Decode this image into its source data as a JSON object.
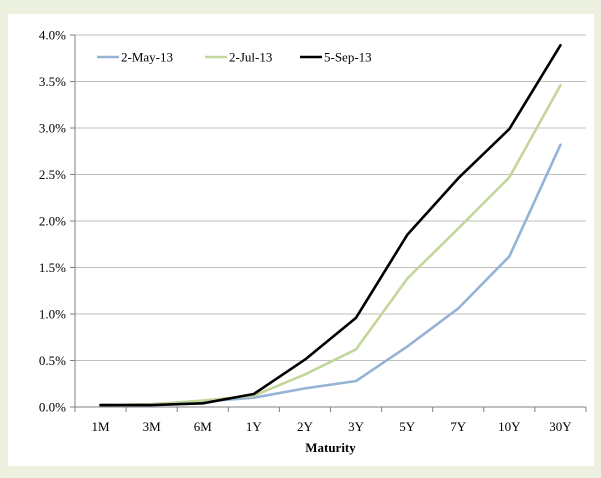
{
  "chart_data": {
    "type": "line",
    "title": "",
    "xlabel": "Maturity",
    "ylabel": "",
    "categories": [
      "1M",
      "3M",
      "6M",
      "1Y",
      "2Y",
      "3Y",
      "5Y",
      "7Y",
      "10Y",
      "30Y"
    ],
    "ylim": [
      0,
      4.0
    ],
    "ytick_labels": [
      "0.0%",
      "0.5%",
      "1.0%",
      "1.5%",
      "2.0%",
      "2.5%",
      "3.0%",
      "3.5%",
      "4.0%"
    ],
    "ytick_values": [
      0,
      0.5,
      1.0,
      1.5,
      2.0,
      2.5,
      3.0,
      3.5,
      4.0
    ],
    "y_unit": "%",
    "grid": "horizontal",
    "legend_position": "top-left",
    "series": [
      {
        "name": "2-May-13",
        "color": "#95b3d7",
        "values": [
          0.02,
          0.03,
          0.06,
          0.1,
          0.2,
          0.28,
          0.65,
          1.06,
          1.62,
          2.82
        ]
      },
      {
        "name": "2-Jul-13",
        "color": "#c3d69b",
        "values": [
          0.02,
          0.03,
          0.07,
          0.12,
          0.35,
          0.62,
          1.38,
          1.92,
          2.47,
          3.46
        ]
      },
      {
        "name": "5-Sep-13",
        "color": "#000000",
        "values": [
          0.02,
          0.02,
          0.04,
          0.14,
          0.51,
          0.96,
          1.85,
          2.46,
          2.99,
          3.89
        ]
      }
    ]
  }
}
